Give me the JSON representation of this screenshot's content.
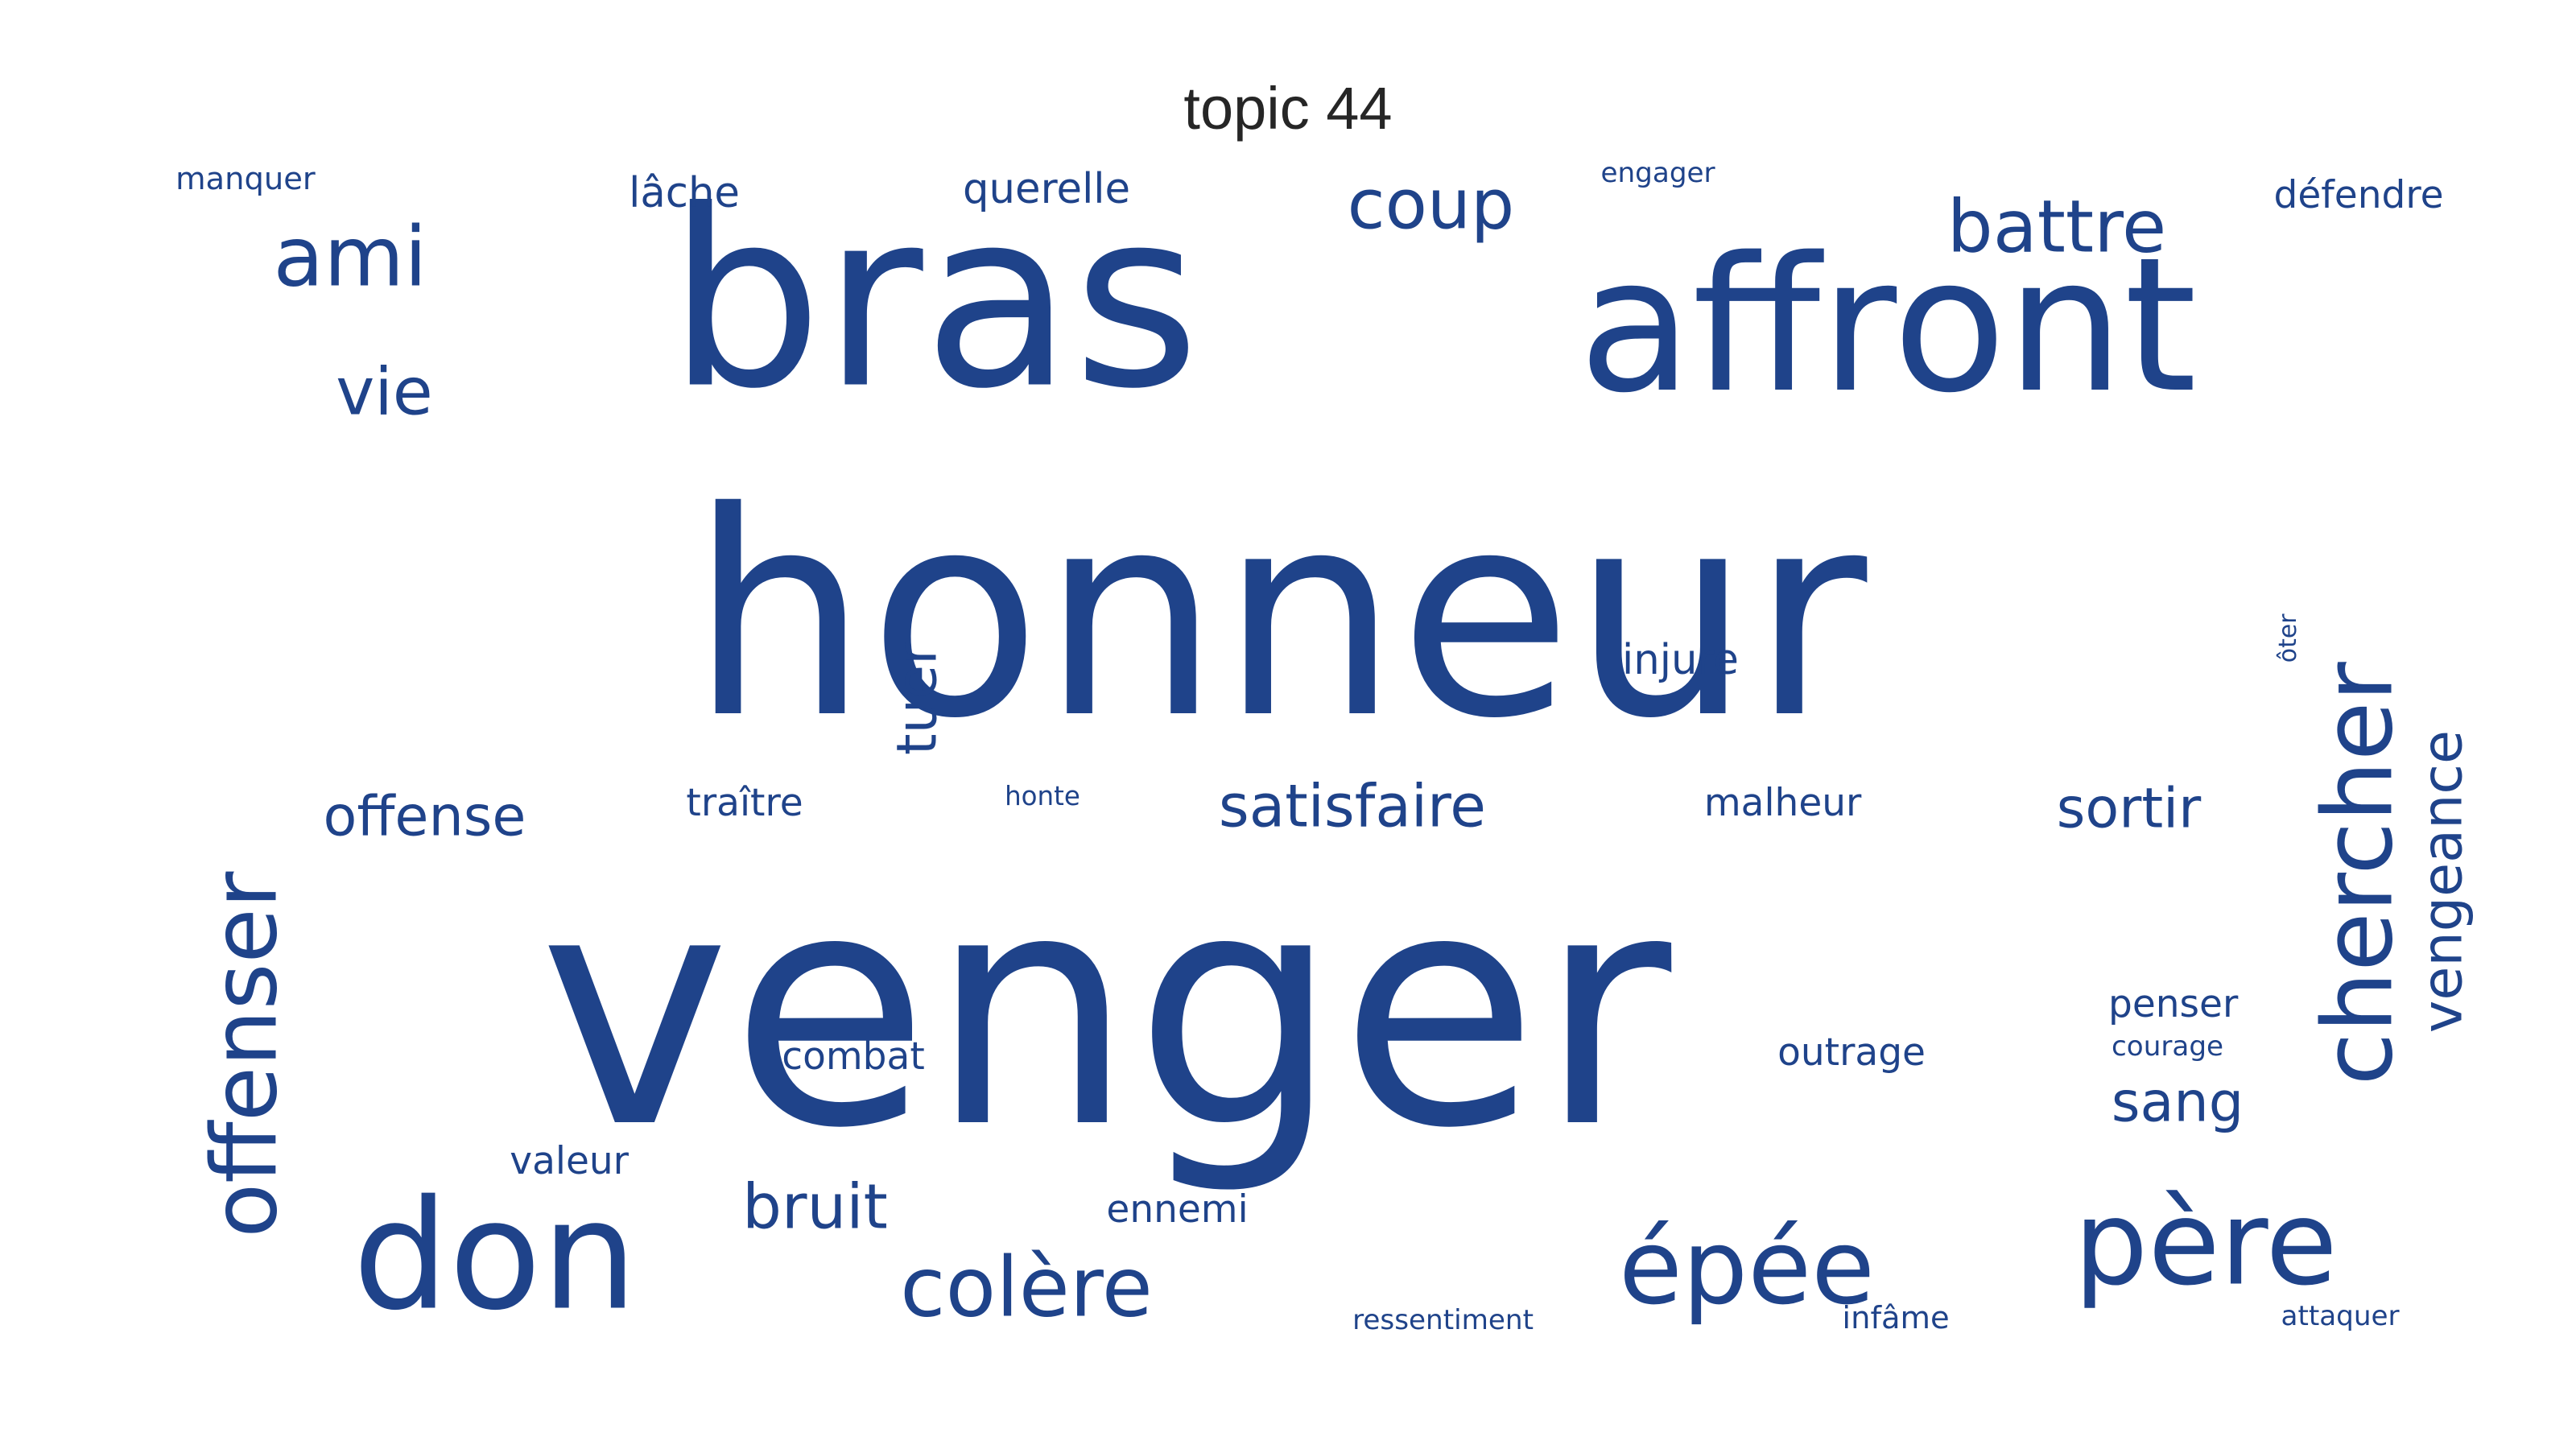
{
  "title": "topic 44",
  "color": "#1f438a",
  "words": [
    {
      "text": "honneur"
    },
    {
      "text": "venger"
    },
    {
      "text": "bras"
    },
    {
      "text": "affront"
    },
    {
      "text": "don"
    },
    {
      "text": "père"
    },
    {
      "text": "épée"
    },
    {
      "text": "colère"
    },
    {
      "text": "chercher"
    },
    {
      "text": "offenser"
    },
    {
      "text": "vengeance"
    },
    {
      "text": "ami"
    },
    {
      "text": "battre"
    },
    {
      "text": "coup"
    },
    {
      "text": "vie"
    },
    {
      "text": "tuer"
    },
    {
      "text": "bruit"
    },
    {
      "text": "satisfaire"
    },
    {
      "text": "offense"
    },
    {
      "text": "sortir"
    },
    {
      "text": "sang"
    },
    {
      "text": "querelle"
    },
    {
      "text": "lâche"
    },
    {
      "text": "défendre"
    },
    {
      "text": "manquer"
    },
    {
      "text": "engager"
    },
    {
      "text": "injure"
    },
    {
      "text": "malheur"
    },
    {
      "text": "traître"
    },
    {
      "text": "honte"
    },
    {
      "text": "combat"
    },
    {
      "text": "outrage"
    },
    {
      "text": "penser"
    },
    {
      "text": "courage"
    },
    {
      "text": "valeur"
    },
    {
      "text": "ennemi"
    },
    {
      "text": "ressentiment"
    },
    {
      "text": "infâme"
    },
    {
      "text": "attaquer"
    },
    {
      "text": "ôter"
    }
  ]
}
